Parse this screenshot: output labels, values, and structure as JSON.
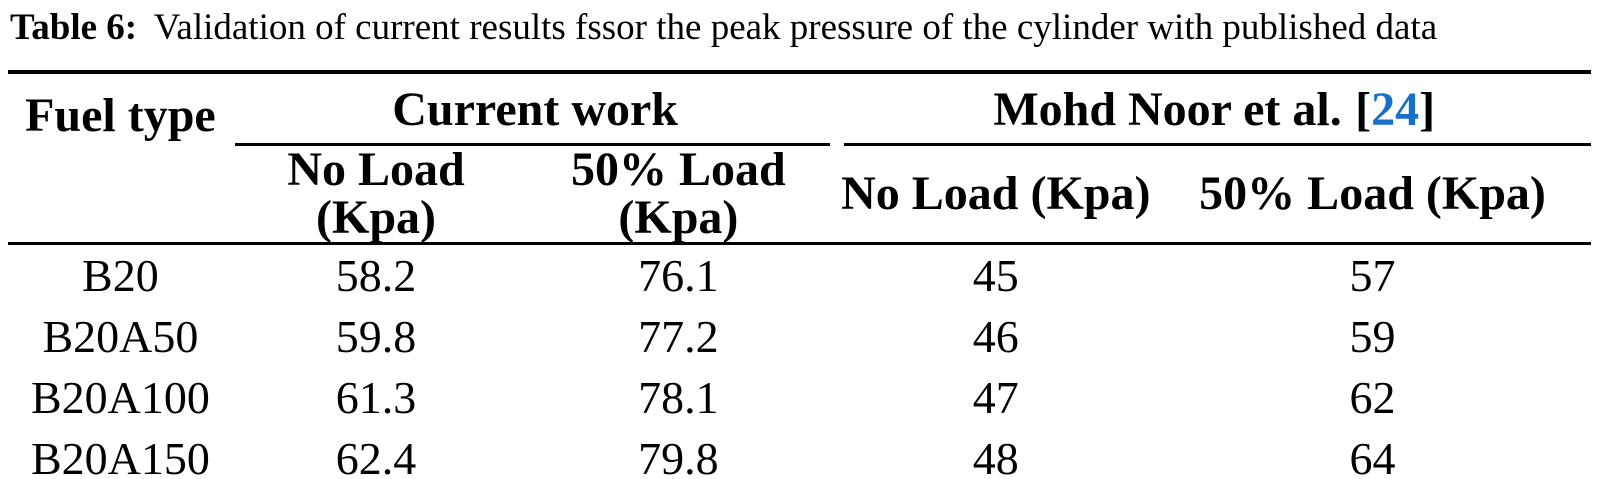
{
  "caption": {
    "label": "Table 6:",
    "text": "Validation of current results fssor the peak pressure of the cylinder with published data"
  },
  "colors": {
    "text": "#000000",
    "rule": "#000000",
    "citation_link": "#1b6fc8",
    "background": "#ffffff"
  },
  "table": {
    "corner_header": "Fuel type",
    "group_headers": [
      {
        "label": "Current work"
      },
      {
        "label": "Mohd Noor et al.",
        "citation": {
          "open": "[",
          "number": "24",
          "close": "]"
        }
      }
    ],
    "sub_headers": [
      "No Load (Kpa)",
      "50% Load (Kpa)",
      "No Load (Kpa)",
      "50% Load (Kpa)"
    ],
    "rows": [
      {
        "fuel_type": "B20",
        "values": [
          "58.2",
          "76.1",
          "45",
          "57"
        ]
      },
      {
        "fuel_type": "B20A50",
        "values": [
          "59.8",
          "77.2",
          "46",
          "59"
        ]
      },
      {
        "fuel_type": "B20A100",
        "values": [
          "61.3",
          "78.1",
          "47",
          "62"
        ]
      },
      {
        "fuel_type": "B20A150",
        "values": [
          "62.4",
          "79.8",
          "48",
          "64"
        ]
      }
    ]
  }
}
